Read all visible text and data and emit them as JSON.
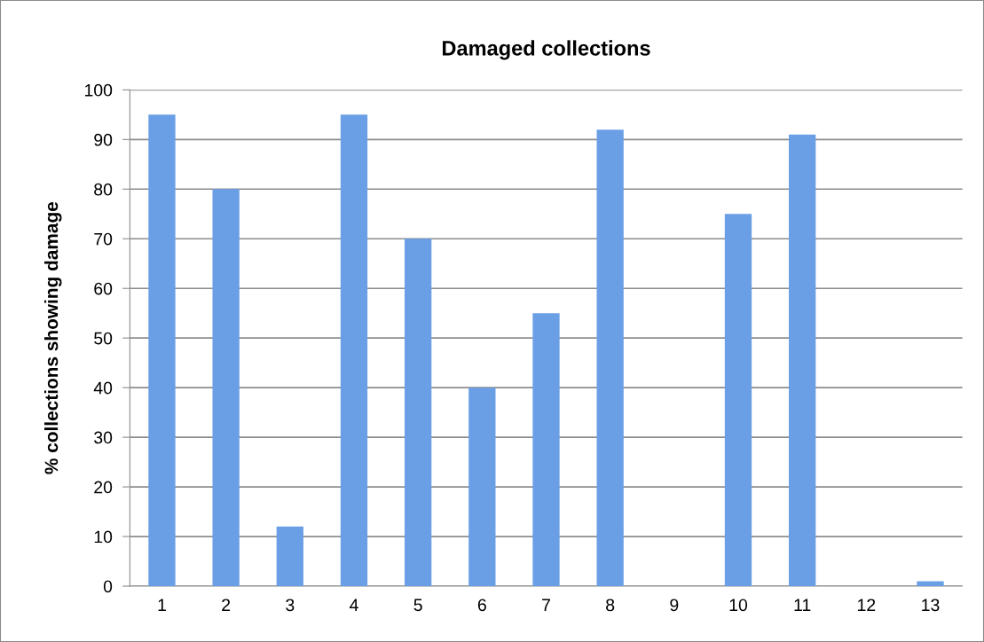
{
  "chart_data": {
    "type": "bar",
    "title": "Damaged collections",
    "ylabel": "% collections showing damage",
    "categories": [
      "1",
      "2",
      "3",
      "4",
      "5",
      "6",
      "7",
      "8",
      "9",
      "10",
      "11",
      "12",
      "13"
    ],
    "values": [
      95,
      80,
      12,
      95,
      70,
      40,
      55,
      92,
      0,
      75,
      91,
      0,
      1
    ],
    "color": "#6a9fe6",
    "ylim": [
      0,
      100
    ],
    "yticks": [
      0,
      10,
      20,
      30,
      40,
      50,
      60,
      70,
      80,
      90,
      100
    ],
    "grid": "y",
    "legend": false
  }
}
